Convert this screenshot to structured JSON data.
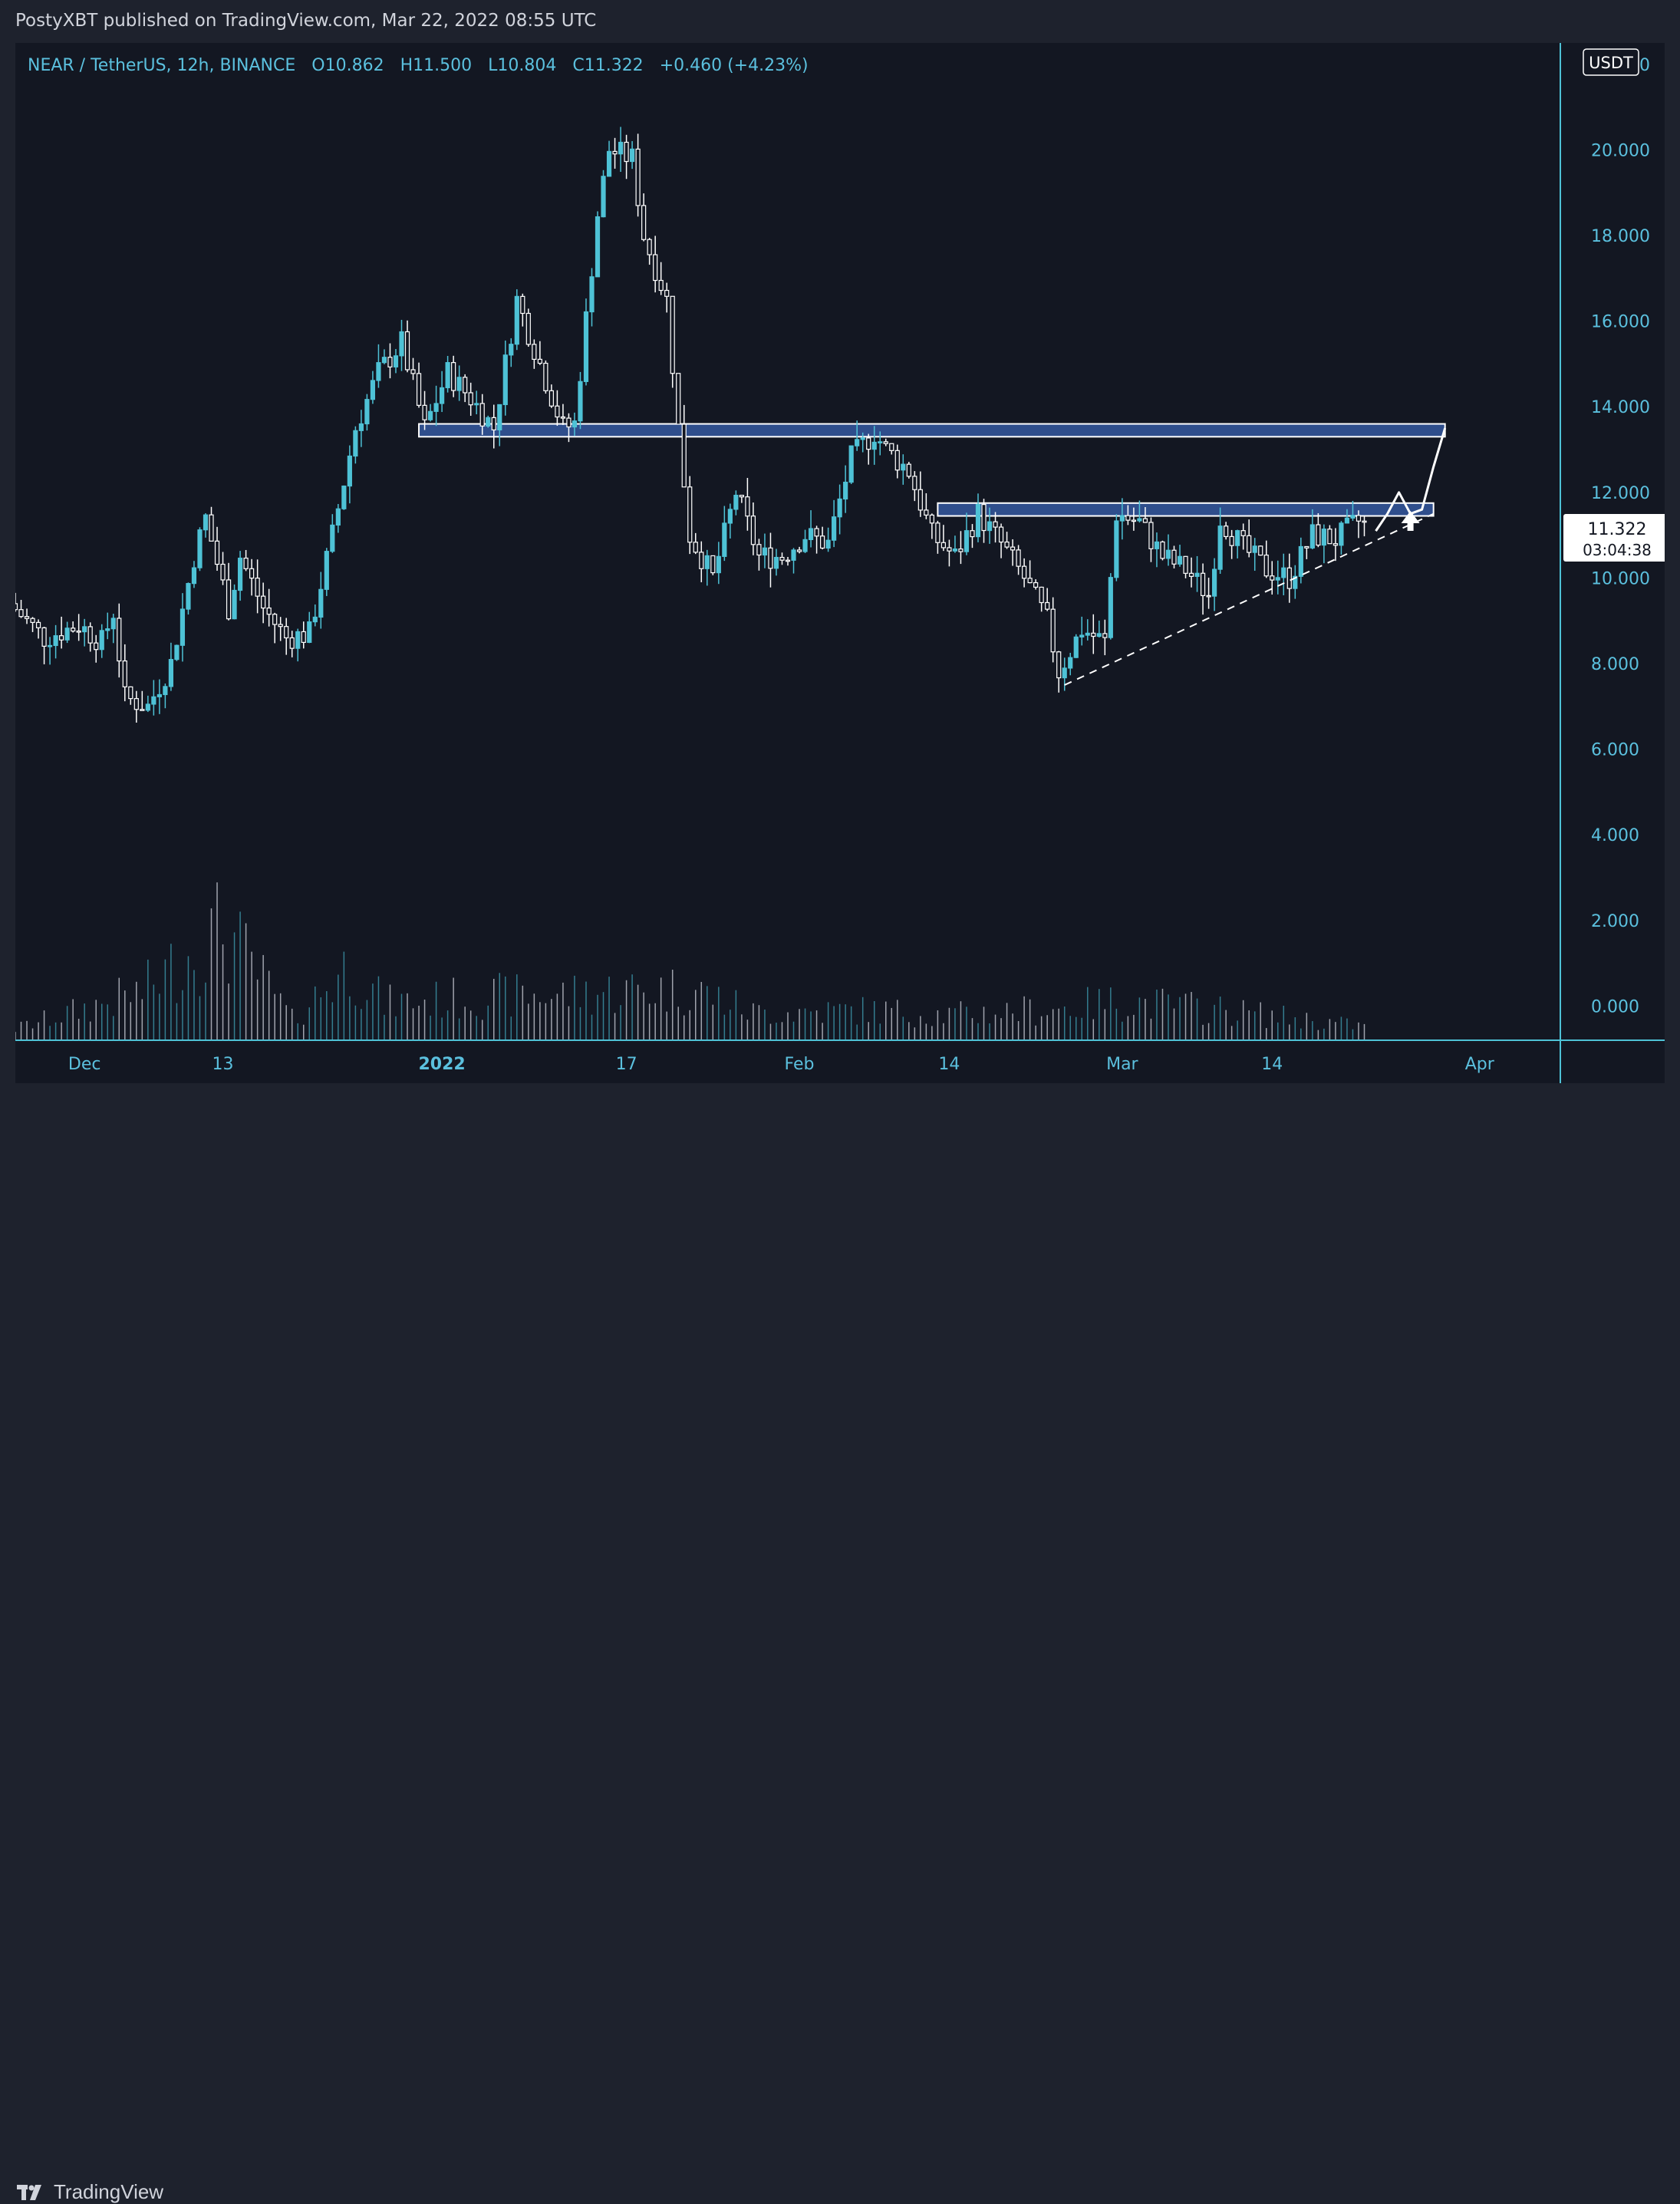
{
  "header": {
    "published_by": "PostyXBT published on TradingView.com, Mar 22, 2022 08:55 UTC"
  },
  "footer": {
    "brand_label": "TradingView",
    "brand_icon": "tradingview-logo-icon"
  },
  "colors": {
    "background": "#131722",
    "axis_text": "#5bc0de",
    "candle_up": "#4ec2d6",
    "candle_down": "#ffffff",
    "zone_fill": "#2f4e8c",
    "zone_border": "#ffffff",
    "price_tag_bg": "#ffffff"
  },
  "chart_data": {
    "type": "candlestick",
    "symbol_line": {
      "symbol": "NEAR / TetherUS, 12h, BINANCE",
      "open": "O10.862",
      "high": "H11.500",
      "low": "L10.804",
      "close": "C11.322",
      "change": "+0.460 (+4.23%)"
    },
    "currency": "USDT",
    "y_range": [
      -0.8,
      22.5
    ],
    "y_ticks": [
      "22.000",
      "20.000",
      "18.000",
      "16.000",
      "14.000",
      "12.000",
      "10.000",
      "8.000",
      "6.000",
      "4.000",
      "2.000",
      "0.000"
    ],
    "y_tick_values": [
      22,
      20,
      18,
      16,
      14,
      12,
      10,
      8,
      6,
      4,
      2,
      0
    ],
    "x_ticks": [
      {
        "label": "Dec",
        "date": "2021-12-01"
      },
      {
        "label": "13",
        "date": "2021-12-13"
      },
      {
        "label": "2022",
        "date": "2022-01-01",
        "bold": true
      },
      {
        "label": "17",
        "date": "2022-01-17"
      },
      {
        "label": "Feb",
        "date": "2022-02-01"
      },
      {
        "label": "14",
        "date": "2022-02-14"
      },
      {
        "label": "Mar",
        "date": "2022-03-01"
      },
      {
        "label": "14",
        "date": "2022-03-14"
      },
      {
        "label": "Apr",
        "date": "2022-04-01"
      }
    ],
    "x_range": [
      "2021-11-25",
      "2022-04-08"
    ],
    "last_price": "11.322",
    "countdown": "03:04:38",
    "grid": false,
    "price_path_approx": [
      [
        "2021-11-25",
        9.4
      ],
      [
        "2021-11-28",
        8.6
      ],
      [
        "2021-12-01",
        8.9
      ],
      [
        "2021-12-03",
        8.5
      ],
      [
        "2021-12-04",
        9.2
      ],
      [
        "2021-12-05",
        7.2
      ],
      [
        "2021-12-07",
        7.0
      ],
      [
        "2021-12-09",
        8.0
      ],
      [
        "2021-12-11",
        10.5
      ],
      [
        "2021-12-12",
        11.4
      ],
      [
        "2021-12-14",
        9.3
      ],
      [
        "2021-12-15",
        10.5
      ],
      [
        "2021-12-17",
        9.3
      ],
      [
        "2021-12-19",
        8.6
      ],
      [
        "2021-12-21",
        8.7
      ],
      [
        "2021-12-23",
        11.0
      ],
      [
        "2021-12-25",
        13.5
      ],
      [
        "2021-12-27",
        14.8
      ],
      [
        "2021-12-29",
        15.5
      ],
      [
        "2021-12-31",
        13.5
      ],
      [
        "2022-01-02",
        14.8
      ],
      [
        "2022-01-04",
        14.2
      ],
      [
        "2022-01-06",
        13.5
      ],
      [
        "2022-01-08",
        16.5
      ],
      [
        "2022-01-10",
        15.0
      ],
      [
        "2022-01-12",
        13.5
      ],
      [
        "2022-01-13",
        13.6
      ],
      [
        "2022-01-15",
        18.5
      ],
      [
        "2022-01-16",
        20.0
      ],
      [
        "2022-01-18",
        19.8
      ],
      [
        "2022-01-19",
        18.0
      ],
      [
        "2022-01-21",
        16.5
      ],
      [
        "2022-01-22",
        13.5
      ],
      [
        "2022-01-23",
        11.0
      ],
      [
        "2022-01-25",
        10.0
      ],
      [
        "2022-01-27",
        12.0
      ],
      [
        "2022-01-29",
        10.5
      ],
      [
        "2022-01-31",
        10.5
      ],
      [
        "2022-02-02",
        11.0
      ],
      [
        "2022-02-04",
        10.8
      ],
      [
        "2022-02-06",
        12.8
      ],
      [
        "2022-02-08",
        13.4
      ],
      [
        "2022-02-09",
        13.0
      ],
      [
        "2022-02-11",
        12.5
      ],
      [
        "2022-02-13",
        11.0
      ],
      [
        "2022-02-15",
        10.5
      ],
      [
        "2022-02-17",
        11.5
      ],
      [
        "2022-02-19",
        10.8
      ],
      [
        "2022-02-21",
        10.0
      ],
      [
        "2022-02-23",
        9.0
      ],
      [
        "2022-02-24",
        7.8
      ],
      [
        "2022-02-26",
        8.8
      ],
      [
        "2022-02-28",
        8.5
      ],
      [
        "2022-03-01",
        11.5
      ],
      [
        "2022-03-03",
        11.3
      ],
      [
        "2022-03-05",
        10.5
      ],
      [
        "2022-03-07",
        10.2
      ],
      [
        "2022-03-09",
        9.6
      ],
      [
        "2022-03-10",
        11.4
      ],
      [
        "2022-03-12",
        10.7
      ],
      [
        "2022-03-14",
        10.2
      ],
      [
        "2022-03-16",
        10.0
      ],
      [
        "2022-03-18",
        11.0
      ],
      [
        "2022-03-20",
        10.9
      ],
      [
        "2022-03-22",
        11.322
      ]
    ],
    "volume_path_approx": [
      [
        "2021-11-25",
        0.5
      ],
      [
        "2021-12-06",
        2.1
      ],
      [
        "2021-12-13",
        4.9
      ],
      [
        "2021-12-19",
        0.9
      ],
      [
        "2021-12-24",
        3.3
      ],
      [
        "2021-12-27",
        1.6
      ],
      [
        "2022-01-05",
        1.9
      ],
      [
        "2022-01-12",
        2.0
      ],
      [
        "2022-01-18",
        2.2
      ],
      [
        "2022-01-23",
        2.2
      ],
      [
        "2022-01-28",
        1.2
      ],
      [
        "2022-02-07",
        1.3
      ],
      [
        "2022-02-14",
        1.1
      ],
      [
        "2022-02-24",
        1.4
      ],
      [
        "2022-03-01",
        1.7
      ],
      [
        "2022-03-10",
        1.3
      ],
      [
        "2022-03-22",
        0.6
      ]
    ],
    "annotations": [
      {
        "type": "zone",
        "from": "2021-12-30",
        "to": "2022-03-29",
        "y_low": 13.3,
        "y_high": 13.6
      },
      {
        "type": "zone",
        "from": "2022-02-13",
        "to": "2022-03-28",
        "y_low": 11.45,
        "y_high": 11.75
      },
      {
        "type": "dashed_trendline",
        "points": [
          [
            "2022-02-24",
            7.5
          ],
          [
            "2022-03-28",
            11.5
          ]
        ]
      },
      {
        "type": "projection_path",
        "points": [
          [
            "2022-03-23",
            11.1
          ],
          [
            "2022-03-24",
            11.5
          ],
          [
            "2022-03-25",
            12.0
          ],
          [
            "2022-03-26",
            11.5
          ],
          [
            "2022-03-27",
            11.6
          ],
          [
            "2022-03-28",
            12.6
          ],
          [
            "2022-03-29",
            13.5
          ]
        ]
      },
      {
        "type": "arrow_up",
        "at": [
          "2022-03-26",
          11.1
        ]
      }
    ]
  }
}
